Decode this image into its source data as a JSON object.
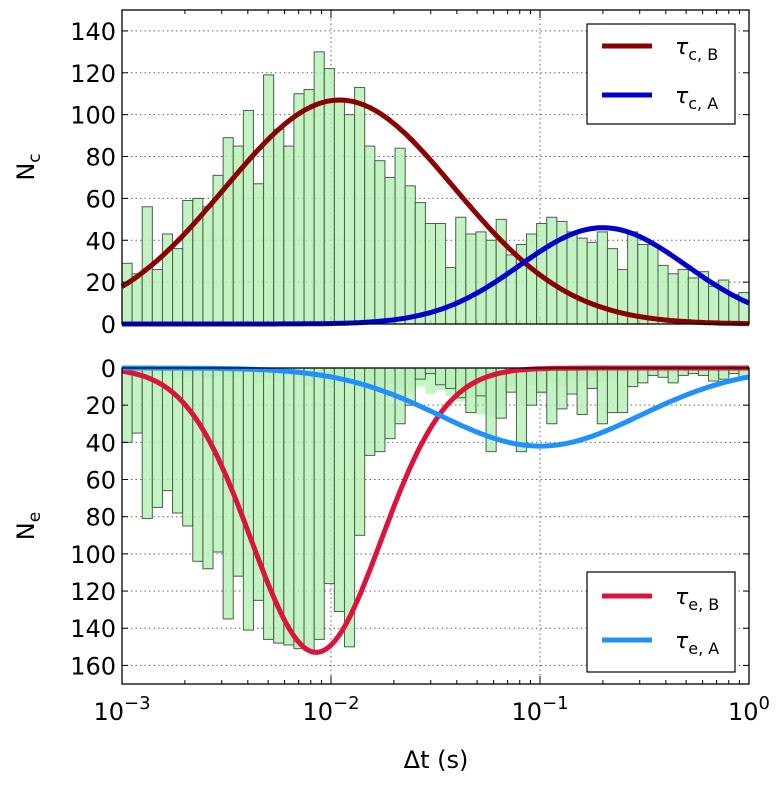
{
  "chart_data": [
    {
      "type": "bar",
      "x_scale": "log",
      "xlim": [
        0.001,
        1
      ],
      "ylim": [
        0,
        150
      ],
      "ylabel_main": "N",
      "ylabel_sub": "c",
      "yticks": [
        "0",
        "20",
        "40",
        "60",
        "80",
        "100",
        "120",
        "140"
      ],
      "grid": true,
      "histogram": [
        29,
        24,
        56,
        26,
        43,
        36,
        59,
        60,
        56,
        71,
        89,
        85,
        102,
        67,
        119,
        93,
        85,
        110,
        112,
        130,
        122,
        106,
        100,
        113,
        85,
        78,
        70,
        84,
        66,
        58,
        48,
        48,
        27,
        51,
        43,
        44,
        40,
        50,
        33,
        38,
        43,
        48,
        51,
        49,
        44,
        41,
        39,
        44,
        36,
        26,
        44,
        38,
        38,
        28,
        24,
        26,
        22,
        25,
        18,
        21,
        14,
        15
      ],
      "series": [
        {
          "name": "τ_c,B",
          "color": "#8b0000",
          "peak_x": 0.011,
          "peak_y": 107,
          "log_sigma": 0.55
        },
        {
          "name": "τ_c,A",
          "color": "#0000cc",
          "peak_x": 0.2,
          "peak_y": 46,
          "log_sigma": 0.4
        }
      ],
      "legend_position": "top-right"
    },
    {
      "type": "bar",
      "x_scale": "log",
      "xlim": [
        0.001,
        1
      ],
      "ylim": [
        0,
        170
      ],
      "y_inverted": true,
      "ylabel_main": "N",
      "ylabel_sub": "e",
      "yticks": [
        "0",
        "20",
        "40",
        "60",
        "80",
        "100",
        "120",
        "140",
        "160"
      ],
      "xticks": [
        {
          "base": "10",
          "exp": "−3"
        },
        {
          "base": "10",
          "exp": "−2"
        },
        {
          "base": "10",
          "exp": "−1"
        },
        {
          "base": "10",
          "exp": "0"
        }
      ],
      "xlabel": "Δt (s)",
      "grid": true,
      "histogram": [
        40,
        35,
        81,
        75,
        66,
        78,
        85,
        104,
        108,
        99,
        135,
        112,
        141,
        125,
        146,
        148,
        149,
        151,
        152,
        146,
        116,
        131,
        150,
        90,
        47,
        45,
        38,
        30,
        20,
        6,
        3,
        9,
        11,
        16,
        24,
        15,
        45,
        27,
        13,
        45,
        20,
        13,
        30,
        22,
        14,
        25,
        11,
        30,
        24,
        24,
        10,
        8,
        4,
        5,
        8,
        4,
        3,
        4,
        7,
        6,
        3,
        5
      ],
      "histogram_light": [
        2,
        3,
        6,
        2,
        4,
        6,
        5,
        3,
        5,
        4,
        7,
        5,
        4,
        8,
        6,
        7,
        4,
        5,
        9,
        6,
        11,
        8,
        9,
        12,
        12,
        13,
        9,
        11,
        12,
        10,
        14,
        12,
        15,
        18,
        16,
        25,
        26,
        22,
        10,
        20,
        9,
        14,
        8,
        10,
        6,
        7,
        5,
        8,
        6,
        4,
        3,
        2,
        3,
        2,
        3,
        2,
        2,
        2,
        2,
        2,
        2,
        2
      ],
      "series": [
        {
          "name": "τ_e,B",
          "color": "#dc143c",
          "peak_x": 0.0085,
          "peak_y": 153,
          "log_sigma": 0.31
        },
        {
          "name": "τ_e,A",
          "color": "#1e90ff",
          "peak_x": 0.1,
          "peak_y": 42,
          "log_sigma": 0.48
        }
      ],
      "legend_position": "bottom-right"
    }
  ]
}
